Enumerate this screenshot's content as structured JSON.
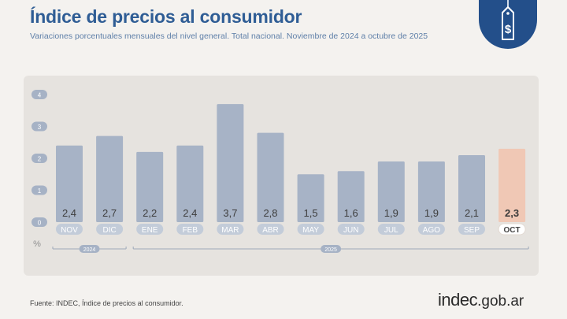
{
  "header": {
    "title": "Índice de precios al consumidor",
    "subtitle": "Variaciones porcentuales mensuales del nivel general. Total nacional. Noviembre de 2024 a octubre de 2025"
  },
  "badge": {
    "icon": "price-tag-dollar-icon",
    "symbol": "$",
    "color": "#234f8a"
  },
  "chart_data": {
    "type": "bar",
    "categories": [
      "NOV",
      "DIC",
      "ENE",
      "FEB",
      "MAR",
      "ABR",
      "MAY",
      "JUN",
      "JUL",
      "AGO",
      "SEP",
      "OCT"
    ],
    "values": [
      2.4,
      2.7,
      2.2,
      2.4,
      3.7,
      2.8,
      1.5,
      1.6,
      1.9,
      1.9,
      2.1,
      2.3
    ],
    "value_labels": [
      "2,4",
      "2,7",
      "2,2",
      "2,4",
      "3,7",
      "2,8",
      "1,5",
      "1,6",
      "1,9",
      "1,9",
      "2,1",
      "2,3"
    ],
    "highlight_index": 11,
    "ylabel": "%",
    "yticks": [
      0,
      1,
      2,
      3,
      4
    ],
    "ylim": [
      0,
      4
    ],
    "grid": false,
    "years": [
      {
        "label": "2024",
        "from_index": 0,
        "to_index": 1
      },
      {
        "label": "2025",
        "from_index": 2,
        "to_index": 11
      }
    ],
    "colors": {
      "bar": "#a7b3c6",
      "highlight": "#f0c8b5",
      "axis_label": "#8f8f8f"
    }
  },
  "footer": {
    "source": "Fuente: INDEC, Índice de precios al consumidor.",
    "brand_main": "indec",
    "brand_suffix": ".gob.ar"
  }
}
